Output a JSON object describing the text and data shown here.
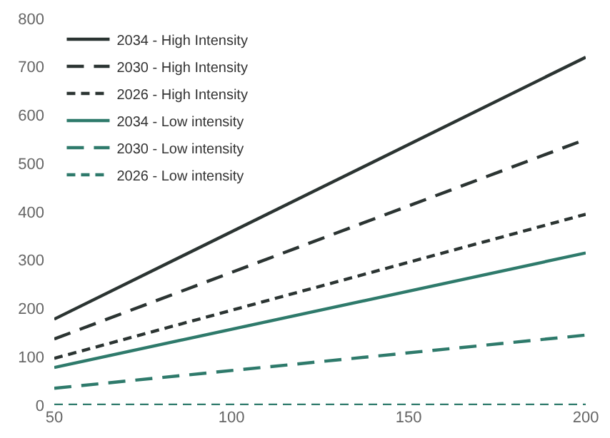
{
  "chart_data": {
    "type": "line",
    "x": [
      50,
      200
    ],
    "xlim": [
      50,
      200
    ],
    "xticks": [
      50,
      100,
      150,
      200
    ],
    "ylim": [
      0,
      800
    ],
    "yticks": [
      0,
      100,
      200,
      300,
      400,
      500,
      600,
      700,
      800
    ],
    "legend": "top left",
    "marker": "none",
    "series": [
      {
        "name": "2034 - High Intensity",
        "color": "#2b3432",
        "line_style": "solid",
        "values": [
          178,
          720
        ]
      },
      {
        "name": "2030 - High Intensity",
        "color": "#2b3432",
        "line_style": "dashed",
        "values": [
          137,
          550
        ]
      },
      {
        "name": "2026 - High Intensity",
        "color": "#2b3432",
        "line_style": "dotted",
        "values": [
          97,
          395
        ]
      },
      {
        "name": "2034 - Low intensity",
        "color": "#2e7a6b",
        "line_style": "solid",
        "values": [
          78,
          315
        ]
      },
      {
        "name": "2030 - Low intensity",
        "color": "#2e7a6b",
        "line_style": "dashed",
        "values": [
          35,
          145
        ]
      },
      {
        "name": "2026 - Low intensity",
        "color": "#2e7a6b",
        "line_style": "dotted",
        "values": [
          0,
          0
        ]
      }
    ]
  }
}
